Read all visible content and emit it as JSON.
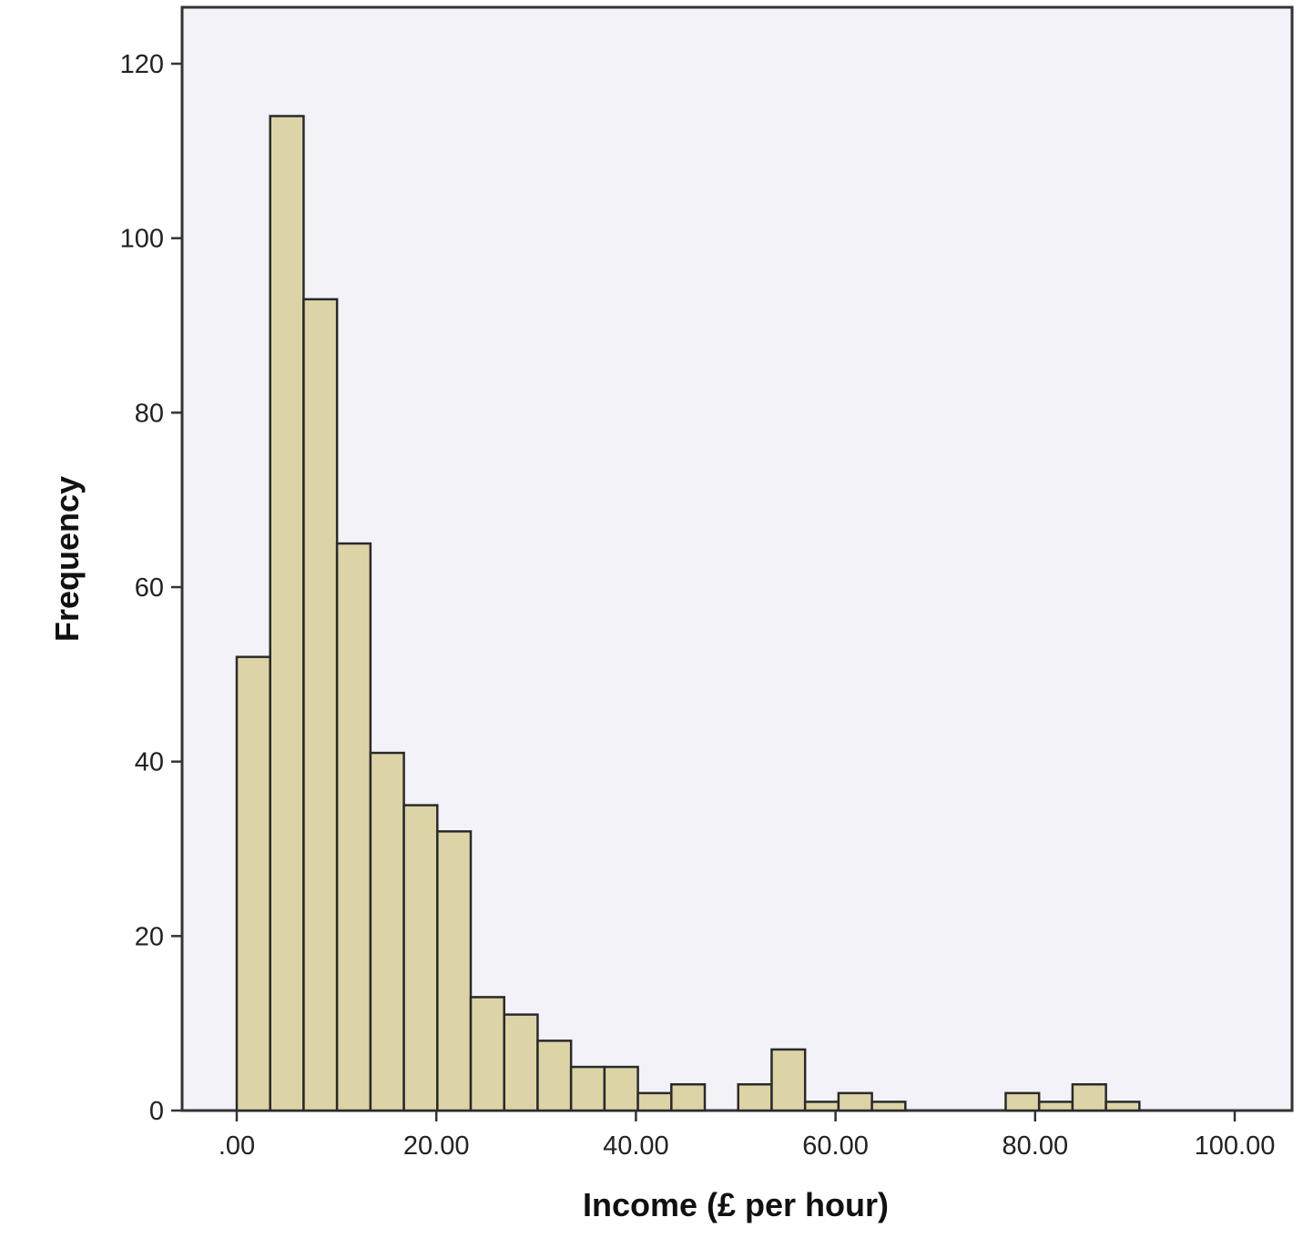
{
  "chart_data": {
    "type": "bar",
    "subtype": "histogram",
    "xlabel": "Income (£ per hour)",
    "ylabel": "Frequency",
    "xlim": [
      -9,
      102
    ],
    "ylim": [
      0,
      124
    ],
    "grid": false,
    "x_ticks": [
      0,
      20,
      40,
      60,
      80,
      100
    ],
    "x_tick_labels": [
      ".00",
      "20.00",
      "40.00",
      "60.00",
      "80.00",
      "100.00"
    ],
    "y_ticks": [
      0,
      20,
      40,
      60,
      80,
      100,
      120
    ],
    "y_tick_labels": [
      "0",
      "20",
      "40",
      "60",
      "80",
      "100",
      "120"
    ],
    "bin_width": 3.35,
    "bins": [
      {
        "start": 0.0,
        "end": 3.35,
        "value": 52
      },
      {
        "start": 3.35,
        "end": 6.7,
        "value": 114
      },
      {
        "start": 6.7,
        "end": 10.05,
        "value": 93
      },
      {
        "start": 10.05,
        "end": 13.4,
        "value": 65
      },
      {
        "start": 13.4,
        "end": 16.75,
        "value": 41
      },
      {
        "start": 16.75,
        "end": 20.1,
        "value": 35
      },
      {
        "start": 20.1,
        "end": 23.45,
        "value": 32
      },
      {
        "start": 23.45,
        "end": 26.8,
        "value": 13
      },
      {
        "start": 26.8,
        "end": 30.15,
        "value": 11
      },
      {
        "start": 30.15,
        "end": 33.5,
        "value": 8
      },
      {
        "start": 33.5,
        "end": 36.85,
        "value": 5
      },
      {
        "start": 36.85,
        "end": 40.2,
        "value": 5
      },
      {
        "start": 40.2,
        "end": 43.55,
        "value": 2
      },
      {
        "start": 43.55,
        "end": 46.9,
        "value": 3
      },
      {
        "start": 46.9,
        "end": 50.25,
        "value": 0
      },
      {
        "start": 50.25,
        "end": 53.6,
        "value": 3
      },
      {
        "start": 53.6,
        "end": 56.95,
        "value": 7
      },
      {
        "start": 56.95,
        "end": 60.3,
        "value": 1
      },
      {
        "start": 60.3,
        "end": 63.65,
        "value": 2
      },
      {
        "start": 63.65,
        "end": 67.0,
        "value": 1
      },
      {
        "start": 67.0,
        "end": 70.35,
        "value": 0
      },
      {
        "start": 70.35,
        "end": 73.7,
        "value": 0
      },
      {
        "start": 73.7,
        "end": 77.05,
        "value": 0
      },
      {
        "start": 77.05,
        "end": 80.4,
        "value": 2
      },
      {
        "start": 80.4,
        "end": 83.75,
        "value": 1
      },
      {
        "start": 83.75,
        "end": 87.1,
        "value": 3
      },
      {
        "start": 87.1,
        "end": 90.45,
        "value": 1
      }
    ]
  },
  "colors": {
    "plot_background": "#f3f2f8",
    "bar_fill": "#dcd4a6",
    "bar_stroke": "#2a2a2a",
    "axis": "#333333"
  }
}
